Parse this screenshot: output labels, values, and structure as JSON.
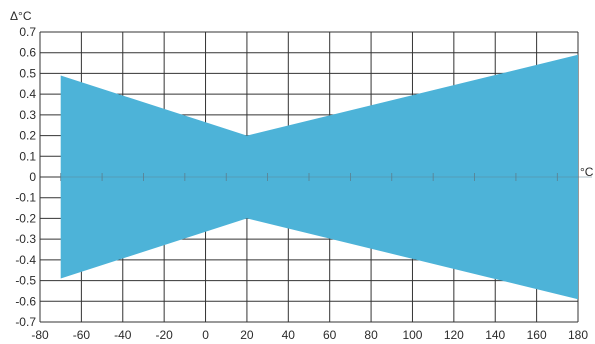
{
  "chart_data": {
    "type": "area",
    "title": "",
    "xlabel": "°C",
    "ylabel": "Δ°C",
    "xlim": [
      -80,
      180
    ],
    "ylim": [
      -0.7,
      0.7
    ],
    "x_ticks": [
      -80,
      -60,
      -40,
      -20,
      0,
      20,
      40,
      60,
      80,
      100,
      120,
      140,
      160,
      180
    ],
    "y_ticks": [
      0.7,
      0.6,
      0.5,
      0.4,
      0.3,
      0.2,
      0.1,
      0,
      -0.1,
      -0.2,
      -0.3,
      -0.4,
      -0.5,
      -0.6,
      -0.7
    ],
    "grid": true,
    "series": [
      {
        "upper": [
          {
            "x": -70,
            "y": 0.49
          },
          {
            "x": 20,
            "y": 0.2
          },
          {
            "x": 180,
            "y": 0.59
          }
        ],
        "lower": [
          {
            "x": -70,
            "y": -0.49
          },
          {
            "x": 20,
            "y": -0.2
          },
          {
            "x": 180,
            "y": -0.59
          }
        ],
        "color": "#4db3d8"
      }
    ],
    "minor_ticks_on_zero_line": [
      -70,
      -50,
      -30,
      -10,
      10,
      30,
      50,
      70,
      90,
      110,
      130,
      150,
      170
    ],
    "colors": {
      "grid": "#333333",
      "fill": "#4db3d8",
      "text": "#2b2b2b"
    }
  }
}
